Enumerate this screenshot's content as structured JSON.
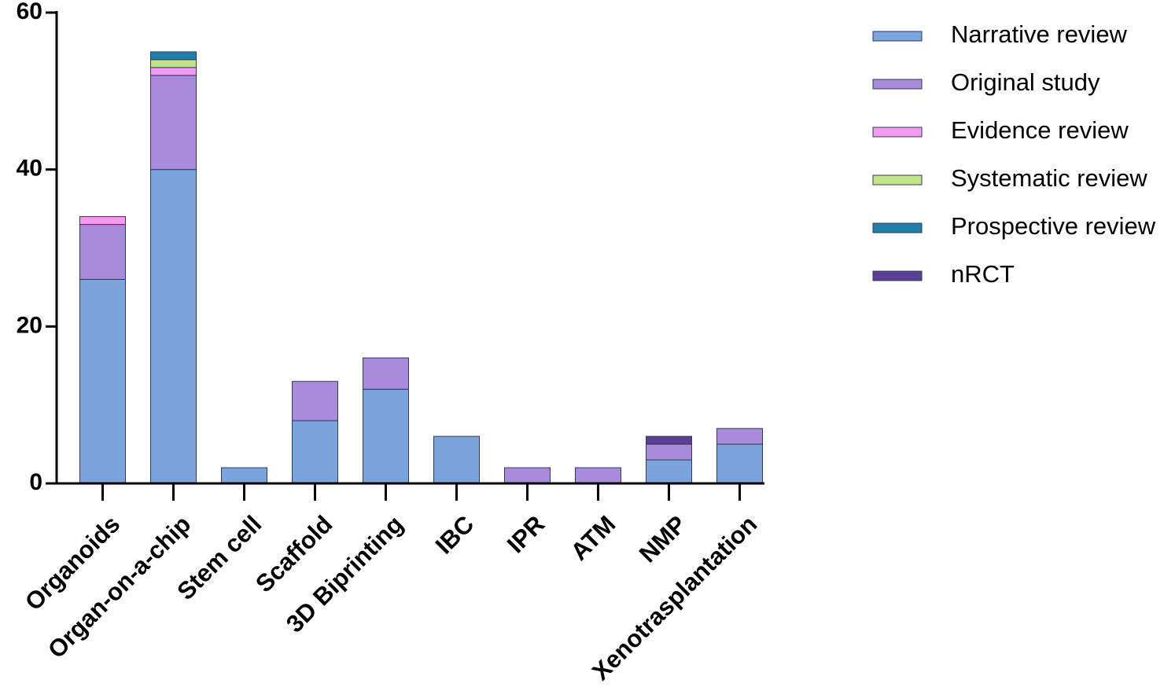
{
  "chart_data": {
    "type": "bar",
    "stacked": true,
    "categories": [
      "Organoids",
      "Organ-on-a-chip",
      "Stem cell",
      "Scaffold",
      "3D Biprinting",
      "IBC",
      "IPR",
      "ATM",
      "NMP",
      "Xenotrasplantation"
    ],
    "series": [
      {
        "name": "Narrative review",
        "color": "#7BA3DC",
        "values": [
          26,
          40,
          2,
          8,
          12,
          6,
          0,
          0,
          3,
          5
        ]
      },
      {
        "name": "Original study",
        "color": "#A98BDC",
        "values": [
          7,
          12,
          0,
          5,
          4,
          0,
          2,
          2,
          2,
          2
        ]
      },
      {
        "name": "Evidence review",
        "color": "#F29BF0",
        "values": [
          1,
          1,
          0,
          0,
          0,
          0,
          0,
          0,
          0,
          0
        ]
      },
      {
        "name": "Systematic review",
        "color": "#C2E38A",
        "values": [
          0,
          1,
          0,
          0,
          0,
          0,
          0,
          0,
          0,
          0
        ]
      },
      {
        "name": "Prospective review",
        "color": "#1F7FA8",
        "values": [
          0,
          1,
          0,
          0,
          0,
          0,
          0,
          0,
          0,
          0
        ]
      },
      {
        "name": "nRCT",
        "color": "#5B3F94",
        "values": [
          0,
          0,
          0,
          0,
          0,
          0,
          0,
          0,
          1,
          0
        ]
      }
    ],
    "ylim": [
      0,
      60
    ],
    "yticks": [
      0,
      20,
      40,
      60
    ],
    "title": "",
    "xlabel": "",
    "ylabel": "",
    "legend_position": "right",
    "grid": false
  }
}
